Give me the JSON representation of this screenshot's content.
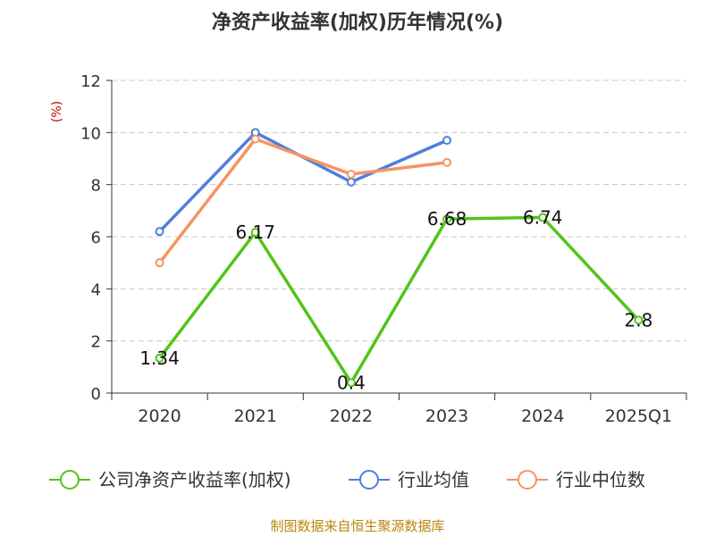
{
  "title": "净资产收益率(加权)历年情况(%)",
  "footer": "制图数据来自恒生聚源数据库",
  "chart_data": {
    "type": "line",
    "title": "净资产收益率(加权)历年情况(%)",
    "ylabel": "(%)",
    "xlabel": "",
    "categories": [
      "2020",
      "2021",
      "2022",
      "2023",
      "2024",
      "2025Q1"
    ],
    "ylim": [
      0,
      12
    ],
    "yticks": [
      0,
      2,
      4,
      6,
      8,
      10,
      12
    ],
    "grid": true,
    "legend_position": "bottom",
    "series": [
      {
        "name": "公司净资产收益率(加权)",
        "color": "#52c41a",
        "values": [
          1.34,
          6.17,
          0.4,
          6.68,
          6.74,
          2.8
        ],
        "labels": [
          "1.34",
          "6.17",
          "0.4",
          "6.68",
          "6.74",
          "2.8"
        ],
        "show_labels": true
      },
      {
        "name": "行业均值",
        "color": "#4e7fdb",
        "values": [
          6.2,
          10.0,
          8.1,
          9.7,
          null,
          null
        ],
        "show_labels": false
      },
      {
        "name": "行业中位数",
        "color": "#f59461",
        "values": [
          5.0,
          9.75,
          8.4,
          8.85,
          null,
          null
        ],
        "show_labels": false
      }
    ]
  }
}
